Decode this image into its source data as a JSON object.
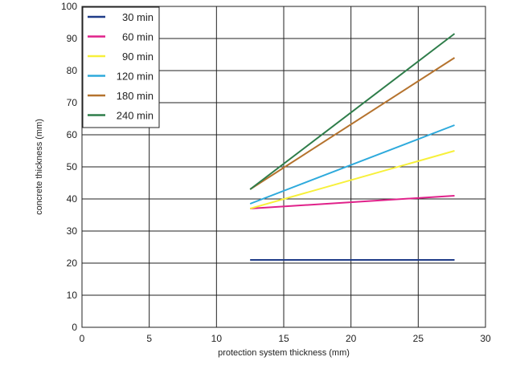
{
  "chart_data": {
    "type": "line",
    "title": "",
    "xlabel": "protection system thickness (mm)",
    "ylabel": "concrete thickness (mm)",
    "xlim": [
      0,
      30
    ],
    "ylim": [
      0,
      100
    ],
    "x_ticks": [
      "0",
      "5",
      "10",
      "15",
      "20",
      "25",
      "30"
    ],
    "y_ticks": [
      "0",
      "10",
      "20",
      "30",
      "40",
      "50",
      "60",
      "70",
      "80",
      "90",
      "100"
    ],
    "grid": true,
    "legend_position": "top-left",
    "series": [
      {
        "name": "30 min",
        "color": "#1f3c88",
        "points": [
          [
            12.5,
            21
          ],
          [
            27.7,
            21
          ]
        ]
      },
      {
        "name": "60 min",
        "color": "#e0218a",
        "points": [
          [
            12.5,
            37
          ],
          [
            27.7,
            41
          ]
        ]
      },
      {
        "name": "90 min",
        "color": "#f7f03a",
        "points": [
          [
            12.5,
            37
          ],
          [
            27.7,
            55
          ]
        ]
      },
      {
        "name": "120 min",
        "color": "#2eaadc",
        "points": [
          [
            12.5,
            38.5
          ],
          [
            27.7,
            63
          ]
        ]
      },
      {
        "name": "180 min",
        "color": "#b5732e",
        "points": [
          [
            12.5,
            43
          ],
          [
            27.7,
            84
          ]
        ]
      },
      {
        "name": "240 min",
        "color": "#2e7d4a",
        "points": [
          [
            12.5,
            43
          ],
          [
            27.7,
            91.5
          ]
        ]
      }
    ]
  }
}
